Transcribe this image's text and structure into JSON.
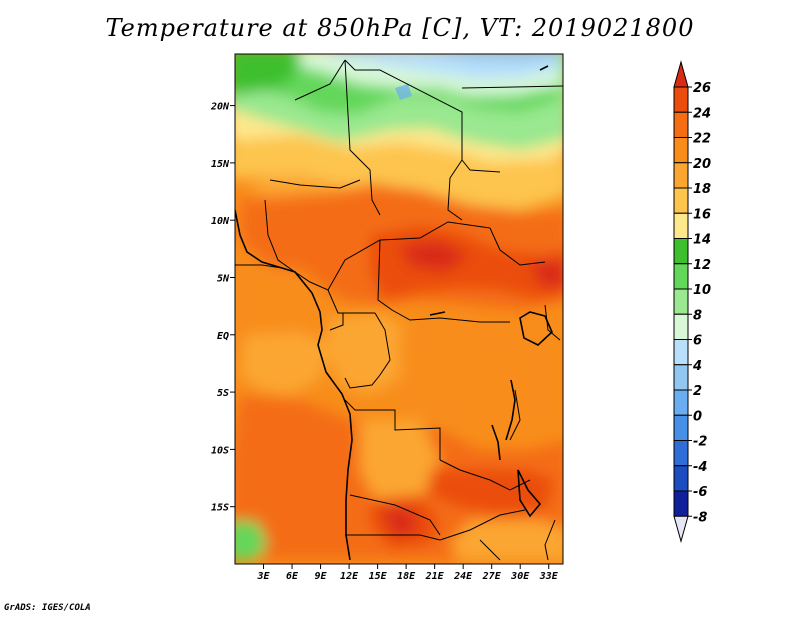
{
  "title": "Temperature at 850hPa [C], VT: 2019021800",
  "footer": "GrADS: IGES/COLA",
  "map": {
    "variable": "Temperature at 850hPa",
    "units": "C",
    "valid_time": "2019021800",
    "region": "Central and Southern Africa",
    "lon_range": [
      0,
      34.5
    ],
    "lat_range": [
      -20,
      24.5
    ]
  },
  "lat_ticks": [
    {
      "label": "20N",
      "lat": 20
    },
    {
      "label": "15N",
      "lat": 15
    },
    {
      "label": "10N",
      "lat": 10
    },
    {
      "label": "5N",
      "lat": 5
    },
    {
      "label": "EQ",
      "lat": 0
    },
    {
      "label": "5S",
      "lat": -5
    },
    {
      "label": "10S",
      "lat": -10
    },
    {
      "label": "15S",
      "lat": -15
    }
  ],
  "lon_ticks": [
    {
      "label": "3E",
      "lon": 3
    },
    {
      "label": "6E",
      "lon": 6
    },
    {
      "label": "9E",
      "lon": 9
    },
    {
      "label": "12E",
      "lon": 12
    },
    {
      "label": "15E",
      "lon": 15
    },
    {
      "label": "18E",
      "lon": 18
    },
    {
      "label": "21E",
      "lon": 21
    },
    {
      "label": "24E",
      "lon": 24
    },
    {
      "label": "27E",
      "lon": 27
    },
    {
      "label": "30E",
      "lon": 30
    },
    {
      "label": "33E",
      "lon": 33
    }
  ],
  "colorbar": {
    "labels": [
      "26",
      "24",
      "22",
      "20",
      "18",
      "16",
      "14",
      "12",
      "10",
      "8",
      "6",
      "4",
      "2",
      "0",
      "-2",
      "-4",
      "-6",
      "-8"
    ],
    "colors": [
      "#d92a12",
      "#eb4d0c",
      "#f46d13",
      "#f88d1b",
      "#fba631",
      "#fdc54d",
      "#fee88c",
      "#3ebf2d",
      "#63d75a",
      "#9ae890",
      "#d8f8d8",
      "#b8e0fa",
      "#92c7f2",
      "#68aef0",
      "#4690e8",
      "#2f6ed8",
      "#1c4dc0",
      "#10209a",
      "#0c0c66"
    ],
    "top_color": "#d92a12",
    "bottom_color": "#e6e6f6"
  }
}
